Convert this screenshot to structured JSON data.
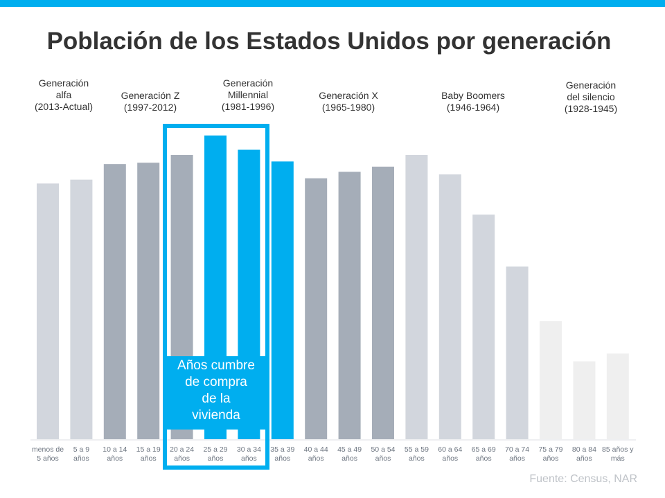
{
  "chart_data": {
    "type": "bar",
    "title": "Población de los Estados Unidos por generación",
    "xlabel": "",
    "ylabel": "",
    "categories": [
      [
        "menos de",
        "5 años"
      ],
      [
        "5 a 9",
        "años"
      ],
      [
        "10 a 14",
        "años"
      ],
      [
        "15 a 19",
        "años"
      ],
      [
        "20 a 24",
        "años"
      ],
      [
        "25 a 29",
        "años"
      ],
      [
        "30 a 34",
        "años"
      ],
      [
        "35 a 39",
        "años"
      ],
      [
        "40 a 44",
        "años"
      ],
      [
        "45 a 49",
        "años"
      ],
      [
        "50 a 54",
        "años"
      ],
      [
        "55 a 59",
        "años"
      ],
      [
        "60 a 64",
        "años"
      ],
      [
        "65 a 69",
        "años"
      ],
      [
        "70 a 74",
        "años"
      ],
      [
        "75 a 79",
        "años"
      ],
      [
        "80 a 84",
        "años"
      ],
      [
        "85 años y",
        "más"
      ]
    ],
    "values": [
      19.7,
      20.0,
      21.2,
      21.3,
      21.9,
      23.4,
      22.3,
      21.4,
      20.1,
      20.6,
      21.0,
      21.9,
      20.4,
      17.3,
      13.3,
      9.1,
      6.0,
      6.6
    ],
    "bar_colors": [
      "#d2d6dd",
      "#d2d6dd",
      "#a5adb8",
      "#a5adb8",
      "#a5adb8",
      "#00aeef",
      "#00aeef",
      "#00aeef",
      "#a5adb8",
      "#a5adb8",
      "#a5adb8",
      "#d2d6dd",
      "#d2d6dd",
      "#d2d6dd",
      "#d2d6dd",
      "#efefef",
      "#efefef",
      "#efefef"
    ],
    "ylim": [
      0,
      23.5
    ],
    "grid": false,
    "generations": [
      {
        "lines": [
          "Generación",
          "alfa",
          "(2013-Actual)"
        ]
      },
      {
        "lines": [
          "Generación Z",
          "(1997-2012)"
        ]
      },
      {
        "lines": [
          "Generación",
          "Millennial",
          "(1981-1996)"
        ]
      },
      {
        "lines": [
          "Generación X",
          "(1965-1980)"
        ]
      },
      {
        "lines": [
          "Baby Boomers",
          "(1946-1964)"
        ]
      },
      {
        "lines": [
          "Generación",
          "del silencio",
          "(1928-1945)"
        ]
      }
    ],
    "annotation": [
      "Años cumbre",
      "de compra",
      "de la",
      "vivienda"
    ],
    "source": "Fuente:  Census, NAR"
  },
  "accent": "#00aeef"
}
